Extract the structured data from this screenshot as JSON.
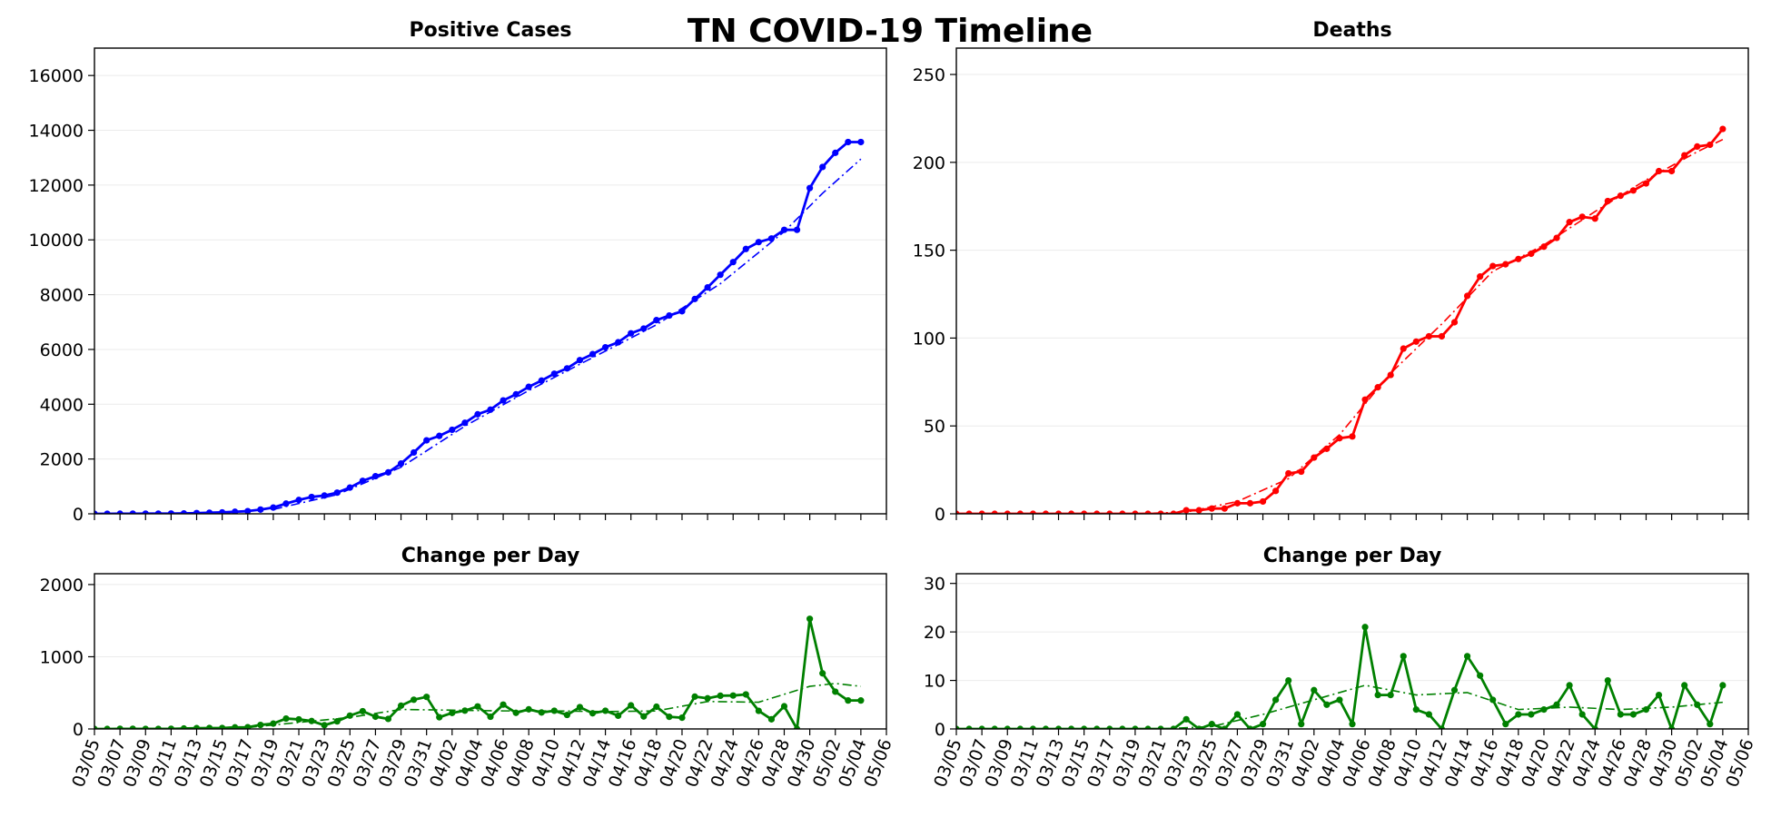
{
  "suptitle": "TN COVID-19 Timeline",
  "x_tick_labels": [
    "03/05",
    "03/07",
    "03/09",
    "03/11",
    "03/13",
    "03/15",
    "03/17",
    "03/19",
    "03/21",
    "03/23",
    "03/25",
    "03/27",
    "03/29",
    "03/31",
    "04/02",
    "04/04",
    "04/06",
    "04/08",
    "04/10",
    "04/12",
    "04/14",
    "04/16",
    "04/18",
    "04/20",
    "04/22",
    "04/24",
    "04/26",
    "04/28",
    "04/30",
    "05/02",
    "05/04",
    "05/06"
  ],
  "colors": {
    "cases": "#0000ff",
    "deaths": "#ff0000",
    "change": "#008000"
  },
  "chart_data": [
    {
      "type": "line",
      "title": "Positive Cases",
      "xlim": [
        "03/05",
        "05/06"
      ],
      "ylim": [
        0,
        17000
      ],
      "yticks": [
        0,
        2000,
        4000,
        6000,
        8000,
        10000,
        12000,
        14000,
        16000
      ],
      "grid": "horizontal",
      "series": [
        {
          "color": "#0000ff",
          "style": "solid-markers",
          "x": [
            "03/05",
            "03/06",
            "03/07",
            "03/08",
            "03/09",
            "03/10",
            "03/11",
            "03/12",
            "03/13",
            "03/14",
            "03/15",
            "03/16",
            "03/17",
            "03/18",
            "03/19",
            "03/20",
            "03/21",
            "03/22",
            "03/23",
            "03/24",
            "03/25",
            "03/26",
            "03/27",
            "03/28",
            "03/29",
            "03/30",
            "03/31",
            "04/01",
            "04/02",
            "04/03",
            "04/04",
            "04/05",
            "04/06",
            "04/07",
            "04/08",
            "04/09",
            "04/10",
            "04/11",
            "04/12",
            "04/13",
            "04/14",
            "04/15",
            "04/16",
            "04/17",
            "04/18",
            "04/19",
            "04/20",
            "04/21",
            "04/22",
            "04/23",
            "04/24",
            "04/25",
            "04/26",
            "04/27",
            "04/28",
            "04/29",
            "04/30",
            "05/01",
            "05/02",
            "05/03",
            "05/04"
          ],
          "values": [
            1,
            1,
            3,
            5,
            6,
            7,
            9,
            15,
            26,
            39,
            52,
            74,
            98,
            154,
            228,
            372,
            505,
            615,
            667,
            772,
            957,
            1203,
            1373,
            1512,
            1834,
            2239,
            2683,
            2845,
            3067,
            3321,
            3633,
            3802,
            4139,
            4362,
            4634,
            4862,
            5114,
            5308,
            5610,
            5827,
            6079,
            6262,
            6589,
            6762,
            7070,
            7238,
            7394,
            7842,
            8266,
            8726,
            9189,
            9667,
            9918,
            10052,
            10366,
            10366,
            11891,
            12661,
            13177,
            13571,
            13571
          ]
        },
        {
          "color": "#0000ff",
          "style": "dash-dot",
          "name": "",
          "x": [
            "03/19",
            "03/24",
            "03/29",
            "04/03",
            "04/08",
            "04/13",
            "04/18",
            "04/23",
            "04/28",
            "05/01",
            "05/04"
          ],
          "values": [
            160,
            700,
            1700,
            3200,
            4500,
            5700,
            6900,
            8400,
            10300,
            11700,
            12950
          ]
        }
      ]
    },
    {
      "type": "line",
      "title": "Deaths",
      "xlim": [
        "03/05",
        "05/06"
      ],
      "ylim": [
        0,
        265
      ],
      "yticks": [
        0,
        50,
        100,
        150,
        200,
        250
      ],
      "grid": "horizontal",
      "series": [
        {
          "color": "#ff0000",
          "style": "solid-markers",
          "x": [
            "03/05",
            "03/06",
            "03/07",
            "03/08",
            "03/09",
            "03/10",
            "03/11",
            "03/12",
            "03/13",
            "03/14",
            "03/15",
            "03/16",
            "03/17",
            "03/18",
            "03/19",
            "03/20",
            "03/21",
            "03/22",
            "03/23",
            "03/24",
            "03/25",
            "03/26",
            "03/27",
            "03/28",
            "03/29",
            "03/30",
            "03/31",
            "04/01",
            "04/02",
            "04/03",
            "04/04",
            "04/05",
            "04/06",
            "04/07",
            "04/08",
            "04/09",
            "04/10",
            "04/11",
            "04/12",
            "04/13",
            "04/14",
            "04/15",
            "04/16",
            "04/17",
            "04/18",
            "04/19",
            "04/20",
            "04/21",
            "04/22",
            "04/23",
            "04/24",
            "04/25",
            "04/26",
            "04/27",
            "04/28",
            "04/29",
            "04/30",
            "05/01",
            "05/02",
            "05/03",
            "05/04"
          ],
          "values": [
            0,
            0,
            0,
            0,
            0,
            0,
            0,
            0,
            0,
            0,
            0,
            0,
            0,
            0,
            0,
            0,
            0,
            0,
            2,
            2,
            3,
            3,
            6,
            6,
            7,
            13,
            23,
            24,
            32,
            37,
            43,
            44,
            65,
            72,
            79,
            94,
            98,
            101,
            101,
            109,
            124,
            135,
            141,
            142,
            145,
            148,
            152,
            157,
            166,
            169,
            168,
            178,
            181,
            184,
            188,
            195,
            195,
            204,
            209,
            210,
            219
          ]
        },
        {
          "color": "#ff0000",
          "style": "dash-dot",
          "name": "",
          "x": [
            "03/19",
            "03/23",
            "03/27",
            "03/31",
            "04/04",
            "04/08",
            "04/12",
            "04/16",
            "04/20",
            "04/24",
            "04/28",
            "05/02",
            "05/04"
          ],
          "values": [
            0,
            1,
            7,
            20,
            45,
            80,
            108,
            138,
            153,
            172,
            190,
            206,
            213
          ]
        }
      ]
    },
    {
      "type": "line",
      "title": "Change per Day",
      "xlim": [
        "03/05",
        "05/06"
      ],
      "ylim": [
        0,
        2150
      ],
      "yticks": [
        0,
        1000,
        2000
      ],
      "grid": "horizontal",
      "series": [
        {
          "color": "#008000",
          "style": "solid-markers",
          "x": [
            "03/05",
            "03/06",
            "03/07",
            "03/08",
            "03/09",
            "03/10",
            "03/11",
            "03/12",
            "03/13",
            "03/14",
            "03/15",
            "03/16",
            "03/17",
            "03/18",
            "03/19",
            "03/20",
            "03/21",
            "03/22",
            "03/23",
            "03/24",
            "03/25",
            "03/26",
            "03/27",
            "03/28",
            "03/29",
            "03/30",
            "03/31",
            "04/01",
            "04/02",
            "04/03",
            "04/04",
            "04/05",
            "04/06",
            "04/07",
            "04/08",
            "04/09",
            "04/10",
            "04/11",
            "04/12",
            "04/13",
            "04/14",
            "04/15",
            "04/16",
            "04/17",
            "04/18",
            "04/19",
            "04/20",
            "04/21",
            "04/22",
            "04/23",
            "04/24",
            "04/25",
            "04/26",
            "04/27",
            "04/28",
            "04/29",
            "04/30",
            "05/01",
            "05/02",
            "05/03",
            "05/04"
          ],
          "values": [
            0,
            0,
            2,
            2,
            1,
            1,
            2,
            6,
            11,
            13,
            13,
            22,
            24,
            56,
            74,
            144,
            133,
            110,
            52,
            105,
            185,
            246,
            170,
            139,
            322,
            405,
            444,
            162,
            222,
            254,
            312,
            169,
            337,
            223,
            272,
            228,
            252,
            194,
            302,
            217,
            252,
            183,
            327,
            173,
            308,
            168,
            156,
            448,
            424,
            460,
            463,
            478,
            251,
            134,
            314,
            0,
            1525,
            770,
            516,
            394,
            394
          ]
        },
        {
          "color": "#008000",
          "style": "dash-dot",
          "name": "",
          "x": [
            "03/17",
            "03/21",
            "03/25",
            "03/29",
            "04/02",
            "04/06",
            "04/10",
            "04/14",
            "04/18",
            "04/22",
            "04/26",
            "04/30",
            "05/02",
            "05/04"
          ],
          "values": [
            20,
            90,
            160,
            270,
            260,
            250,
            250,
            240,
            250,
            380,
            370,
            590,
            630,
            590
          ]
        }
      ]
    },
    {
      "type": "line",
      "title": "Change per Day",
      "xlim": [
        "03/05",
        "05/06"
      ],
      "ylim": [
        0,
        32
      ],
      "yticks": [
        0,
        10,
        20,
        30
      ],
      "grid": "horizontal",
      "series": [
        {
          "color": "#008000",
          "style": "solid-markers",
          "x": [
            "03/05",
            "03/06",
            "03/07",
            "03/08",
            "03/09",
            "03/10",
            "03/11",
            "03/12",
            "03/13",
            "03/14",
            "03/15",
            "03/16",
            "03/17",
            "03/18",
            "03/19",
            "03/20",
            "03/21",
            "03/22",
            "03/23",
            "03/24",
            "03/25",
            "03/26",
            "03/27",
            "03/28",
            "03/29",
            "03/30",
            "03/31",
            "04/01",
            "04/02",
            "04/03",
            "04/04",
            "04/05",
            "04/06",
            "04/07",
            "04/08",
            "04/09",
            "04/10",
            "04/11",
            "04/12",
            "04/13",
            "04/14",
            "04/15",
            "04/16",
            "04/17",
            "04/18",
            "04/19",
            "04/20",
            "04/21",
            "04/22",
            "04/23",
            "04/24",
            "04/25",
            "04/26",
            "04/27",
            "04/28",
            "04/29",
            "04/30",
            "05/01",
            "05/02",
            "05/03",
            "05/04"
          ],
          "values": [
            0,
            0,
            0,
            0,
            0,
            0,
            0,
            0,
            0,
            0,
            0,
            0,
            0,
            0,
            0,
            0,
            0,
            0,
            2,
            0,
            1,
            0,
            3,
            0,
            1,
            6,
            10,
            1,
            8,
            5,
            6,
            1,
            21,
            7,
            7,
            15,
            4,
            3,
            0,
            8,
            15,
            11,
            6,
            1,
            3,
            3,
            4,
            5,
            9,
            3,
            0,
            10,
            3,
            3,
            4,
            7,
            0,
            9,
            5,
            1,
            9
          ]
        },
        {
          "color": "#008000",
          "style": "dash-dot",
          "name": "",
          "x": [
            "03/21",
            "03/25",
            "03/29",
            "04/02",
            "04/06",
            "04/10",
            "04/14",
            "04/18",
            "04/22",
            "04/26",
            "04/30",
            "05/04"
          ],
          "values": [
            0,
            0.5,
            3,
            6,
            9,
            7,
            7.5,
            4,
            4.5,
            4,
            4.5,
            5.5
          ]
        }
      ]
    }
  ]
}
